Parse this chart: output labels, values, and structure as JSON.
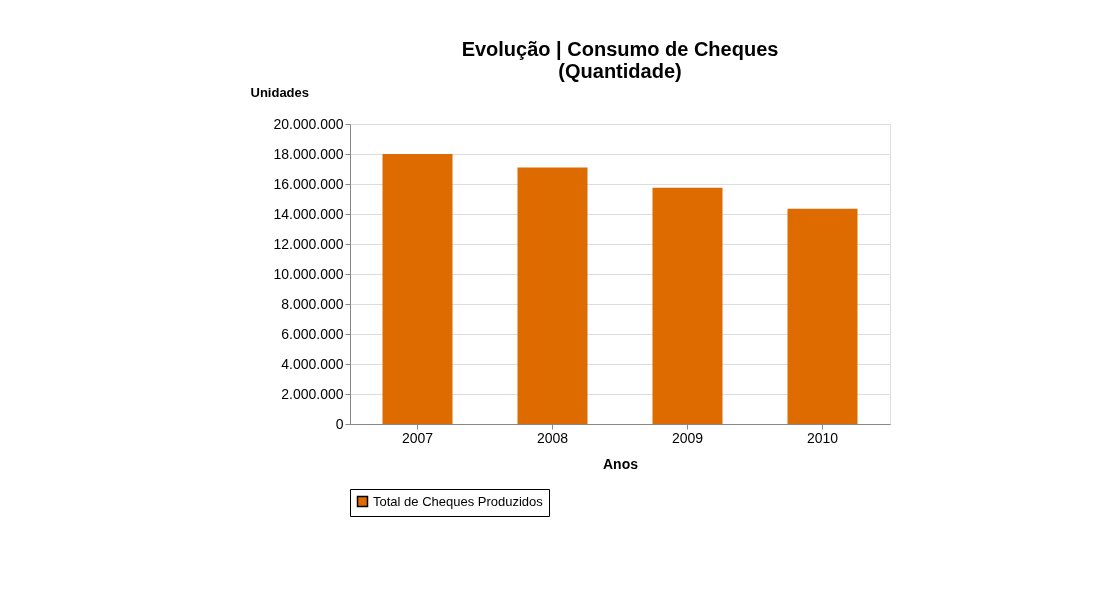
{
  "chart_data": {
    "type": "bar",
    "title": [
      "Evolução | Consumo de Cheques",
      "(Quantidade)"
    ],
    "xlabel": "Anos",
    "ylabel": "Unidades",
    "categories": [
      "2007",
      "2008",
      "2009",
      "2010"
    ],
    "series": [
      {
        "name": "Total de Cheques Produzidos",
        "color": "#dd6b00",
        "values": [
          18000000,
          17100000,
          15750000,
          14350000
        ]
      }
    ],
    "ylim": [
      0,
      20000000
    ],
    "yticks": [
      {
        "value": 0,
        "label": "0"
      },
      {
        "value": 2000000,
        "label": "2.000.000"
      },
      {
        "value": 4000000,
        "label": "4.000.000"
      },
      {
        "value": 6000000,
        "label": "6.000.000"
      },
      {
        "value": 8000000,
        "label": "8.000.000"
      },
      {
        "value": 10000000,
        "label": "10.000.000"
      },
      {
        "value": 12000000,
        "label": "12.000.000"
      },
      {
        "value": 14000000,
        "label": "14.000.000"
      },
      {
        "value": 16000000,
        "label": "16.000.000"
      },
      {
        "value": 18000000,
        "label": "18.000.000"
      },
      {
        "value": 20000000,
        "label": "20.000.000"
      }
    ],
    "grid": "y",
    "legend": "bottom"
  }
}
